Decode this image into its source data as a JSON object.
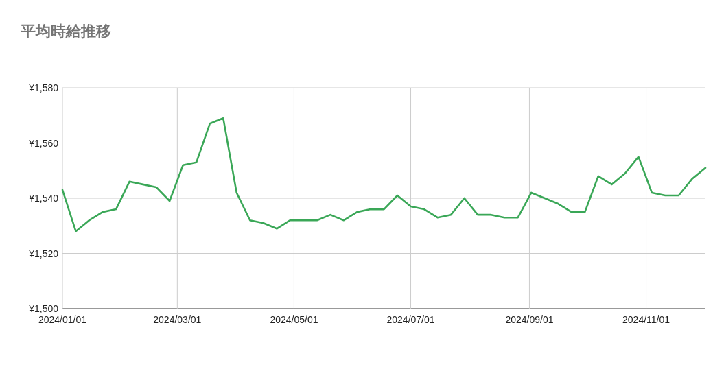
{
  "chart_data": {
    "type": "line",
    "title": "平均時給推移",
    "x": [
      "2024-01-01",
      "2024-01-08",
      "2024-01-15",
      "2024-01-22",
      "2024-01-29",
      "2024-02-05",
      "2024-02-12",
      "2024-02-19",
      "2024-02-26",
      "2024-03-04",
      "2024-03-11",
      "2024-03-18",
      "2024-03-25",
      "2024-04-01",
      "2024-04-08",
      "2024-04-15",
      "2024-04-22",
      "2024-04-29",
      "2024-05-06",
      "2024-05-13",
      "2024-05-20",
      "2024-05-27",
      "2024-06-03",
      "2024-06-10",
      "2024-06-17",
      "2024-06-24",
      "2024-07-01",
      "2024-07-08",
      "2024-07-15",
      "2024-07-22",
      "2024-07-29",
      "2024-08-05",
      "2024-08-12",
      "2024-08-19",
      "2024-08-26",
      "2024-09-02",
      "2024-09-09",
      "2024-09-16",
      "2024-09-23",
      "2024-09-30",
      "2024-10-07",
      "2024-10-14",
      "2024-10-21",
      "2024-10-28",
      "2024-11-04",
      "2024-11-11",
      "2024-11-18",
      "2024-11-25",
      "2024-12-02"
    ],
    "series": [
      {
        "color": "#3aa757",
        "values": [
          1543,
          1528,
          1532,
          1535,
          1536,
          1546,
          1545,
          1544,
          1539,
          1552,
          1553,
          1567,
          1569,
          1542,
          1532,
          1531,
          1529,
          1532,
          1532,
          1532,
          1534,
          1532,
          1535,
          1536,
          1536,
          1541,
          1537,
          1536,
          1533,
          1534,
          1540,
          1534,
          1534,
          1533,
          1533,
          1542,
          1540,
          1538,
          1535,
          1535,
          1548,
          1545,
          1549,
          1555,
          1542,
          1541,
          1541,
          1547,
          1551
        ]
      }
    ],
    "xlim": [
      "2024-01-01",
      "2024-12-02"
    ],
    "xticks": [
      {
        "value": "2024-01-01",
        "label": "2024/01/01"
      },
      {
        "value": "2024-03-01",
        "label": "2024/03/01"
      },
      {
        "value": "2024-05-01",
        "label": "2024/05/01"
      },
      {
        "value": "2024-07-01",
        "label": "2024/07/01"
      },
      {
        "value": "2024-09-01",
        "label": "2024/09/01"
      },
      {
        "value": "2024-11-01",
        "label": "2024/11/01"
      }
    ],
    "ylim": [
      1500,
      1580
    ],
    "yticks": [
      {
        "value": 1500,
        "label": "¥1,500"
      },
      {
        "value": 1520,
        "label": "¥1,520"
      },
      {
        "value": 1540,
        "label": "¥1,540"
      },
      {
        "value": 1560,
        "label": "¥1,560"
      },
      {
        "value": 1580,
        "label": "¥1,580"
      }
    ],
    "grid": true,
    "marker": "none",
    "line_style": "solid"
  }
}
